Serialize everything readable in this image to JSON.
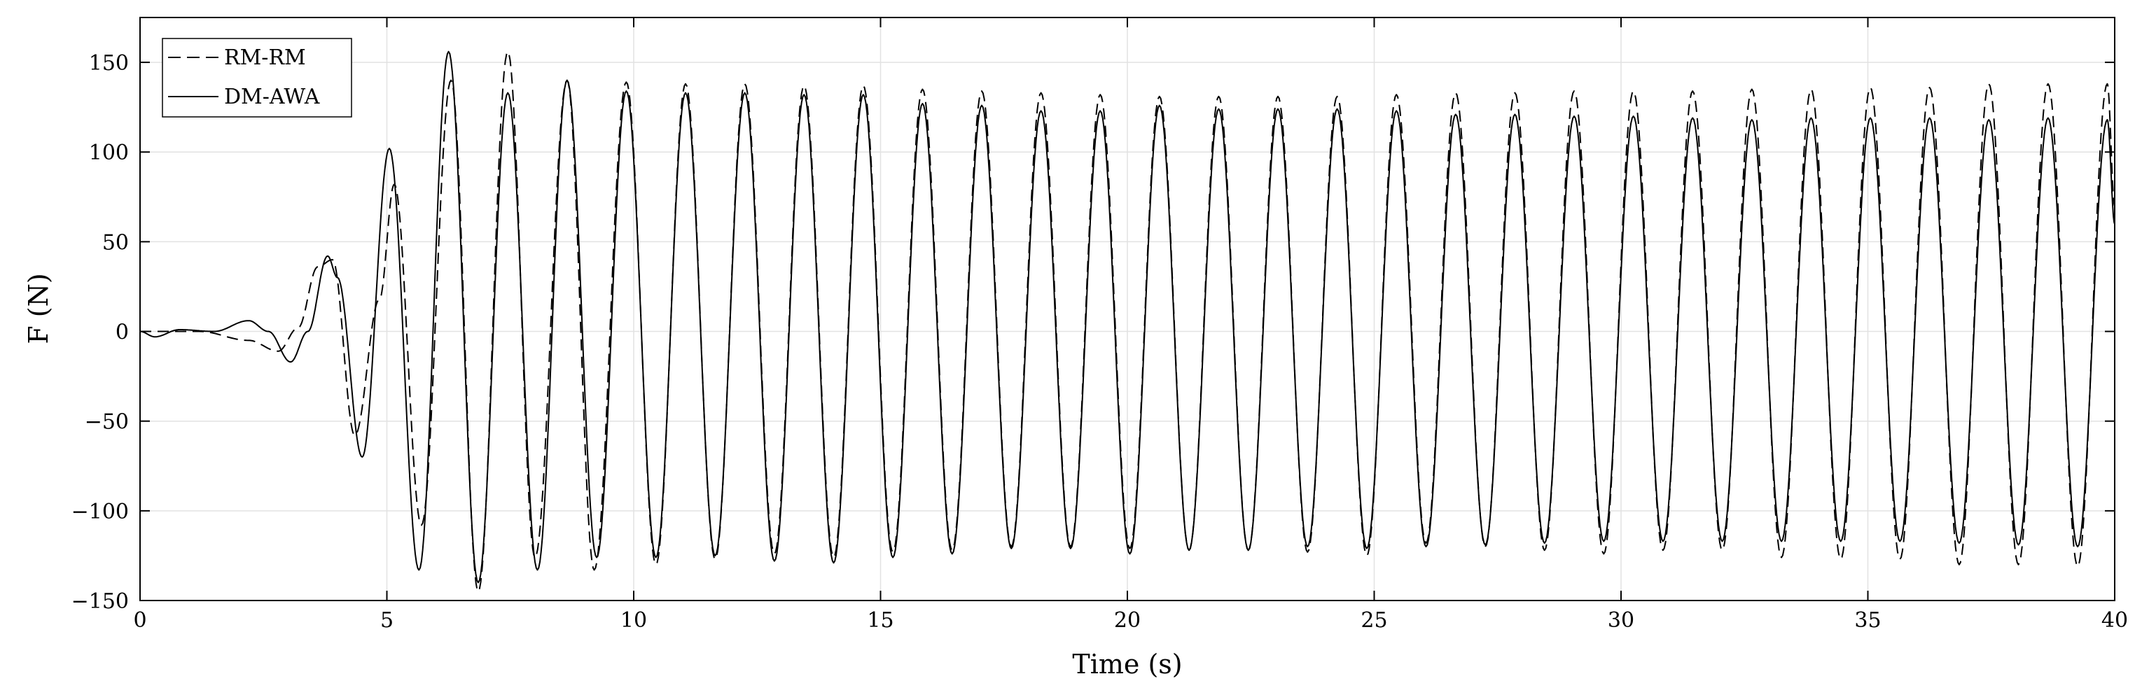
{
  "chart_data": {
    "type": "line",
    "xlabel": "Time (s)",
    "ylabel": "F (N)",
    "xlim": [
      0,
      40
    ],
    "ylim": [
      -150,
      175
    ],
    "xticks": [
      0,
      5,
      10,
      15,
      20,
      25,
      30,
      35,
      40
    ],
    "yticks": [
      -150,
      -100,
      -50,
      0,
      50,
      100,
      150
    ],
    "grid": true,
    "legend_position": "top-left",
    "series": [
      {
        "name": "RM-RM",
        "line_style": "dashed",
        "color": "#000000",
        "points": [
          [
            0,
            0
          ],
          [
            1.2,
            0
          ],
          [
            2.2,
            -5
          ],
          [
            2.8,
            -11
          ],
          [
            3.2,
            2
          ],
          [
            3.6,
            36
          ],
          [
            3.9,
            40
          ],
          [
            4.35,
            -58
          ],
          [
            4.85,
            18
          ],
          [
            5.15,
            82
          ],
          [
            5.7,
            -108
          ],
          [
            6.3,
            140
          ],
          [
            6.85,
            -145
          ],
          [
            7.45,
            156
          ],
          [
            8.0,
            -126
          ],
          [
            8.65,
            140
          ],
          [
            9.2,
            -133
          ],
          [
            9.85,
            139
          ],
          [
            10.45,
            -130
          ],
          [
            11.05,
            138
          ],
          [
            11.65,
            -127
          ],
          [
            12.25,
            138
          ],
          [
            12.85,
            -124
          ],
          [
            13.45,
            137
          ],
          [
            14.05,
            -126
          ],
          [
            14.65,
            137
          ],
          [
            15.25,
            -123
          ],
          [
            15.85,
            135
          ],
          [
            16.45,
            -122
          ],
          [
            17.05,
            134
          ],
          [
            17.65,
            -120
          ],
          [
            18.25,
            133
          ],
          [
            18.85,
            -120
          ],
          [
            19.45,
            132
          ],
          [
            20.05,
            -121
          ],
          [
            20.65,
            131
          ],
          [
            21.25,
            -122
          ],
          [
            21.85,
            131
          ],
          [
            22.45,
            -122
          ],
          [
            23.05,
            131
          ],
          [
            23.65,
            -123
          ],
          [
            24.25,
            131
          ],
          [
            24.85,
            -125
          ],
          [
            25.45,
            132
          ],
          [
            26.05,
            -118
          ],
          [
            26.65,
            133
          ],
          [
            27.25,
            -120
          ],
          [
            27.85,
            133
          ],
          [
            28.45,
            -122
          ],
          [
            29.05,
            134
          ],
          [
            29.65,
            -124
          ],
          [
            30.25,
            134
          ],
          [
            30.85,
            -122
          ],
          [
            31.45,
            134
          ],
          [
            32.05,
            -122
          ],
          [
            32.65,
            135
          ],
          [
            33.25,
            -126
          ],
          [
            33.85,
            135
          ],
          [
            34.45,
            -127
          ],
          [
            35.05,
            136
          ],
          [
            35.65,
            -127
          ],
          [
            36.25,
            136
          ],
          [
            36.85,
            -130
          ],
          [
            37.45,
            138
          ],
          [
            38.05,
            -130
          ],
          [
            38.65,
            138
          ],
          [
            39.25,
            -131
          ],
          [
            39.85,
            138
          ],
          [
            40.0,
            70
          ]
        ]
      },
      {
        "name": "DM-AWA",
        "line_style": "solid",
        "color": "#000000",
        "points": [
          [
            0,
            0
          ],
          [
            0.3,
            -3
          ],
          [
            0.8,
            1
          ],
          [
            1.5,
            0
          ],
          [
            2.2,
            6
          ],
          [
            2.6,
            0
          ],
          [
            3.05,
            -17
          ],
          [
            3.4,
            0
          ],
          [
            3.8,
            42
          ],
          [
            4.0,
            30
          ],
          [
            4.5,
            -70
          ],
          [
            5.05,
            102
          ],
          [
            5.65,
            -133
          ],
          [
            6.25,
            156
          ],
          [
            6.85,
            -140
          ],
          [
            7.45,
            133
          ],
          [
            8.05,
            -133
          ],
          [
            8.65,
            140
          ],
          [
            9.25,
            -126
          ],
          [
            9.85,
            134
          ],
          [
            10.45,
            -126
          ],
          [
            11.05,
            133
          ],
          [
            11.65,
            -125
          ],
          [
            12.25,
            133
          ],
          [
            12.85,
            -128
          ],
          [
            13.45,
            132
          ],
          [
            14.05,
            -129
          ],
          [
            14.65,
            132
          ],
          [
            15.25,
            -126
          ],
          [
            15.85,
            127
          ],
          [
            16.45,
            -124
          ],
          [
            17.05,
            126
          ],
          [
            17.65,
            -121
          ],
          [
            18.25,
            123
          ],
          [
            18.85,
            -121
          ],
          [
            19.45,
            123
          ],
          [
            20.05,
            -124
          ],
          [
            20.65,
            126
          ],
          [
            21.25,
            -122
          ],
          [
            21.85,
            124
          ],
          [
            22.45,
            -122
          ],
          [
            23.05,
            124
          ],
          [
            23.65,
            -120
          ],
          [
            24.25,
            124
          ],
          [
            24.85,
            -121
          ],
          [
            25.45,
            123
          ],
          [
            26.05,
            -120
          ],
          [
            26.65,
            121
          ],
          [
            27.25,
            -119
          ],
          [
            27.85,
            121
          ],
          [
            28.45,
            -118
          ],
          [
            29.05,
            120
          ],
          [
            29.65,
            -117
          ],
          [
            30.25,
            120
          ],
          [
            30.85,
            -117
          ],
          [
            31.45,
            119
          ],
          [
            32.05,
            -117
          ],
          [
            32.65,
            118
          ],
          [
            33.25,
            -117
          ],
          [
            33.85,
            119
          ],
          [
            34.45,
            -117
          ],
          [
            35.05,
            119
          ],
          [
            35.65,
            -117
          ],
          [
            36.25,
            119
          ],
          [
            36.85,
            -118
          ],
          [
            37.45,
            118
          ],
          [
            38.05,
            -119
          ],
          [
            38.65,
            119
          ],
          [
            39.25,
            -120
          ],
          [
            39.85,
            118
          ],
          [
            40.0,
            60
          ]
        ]
      }
    ]
  }
}
